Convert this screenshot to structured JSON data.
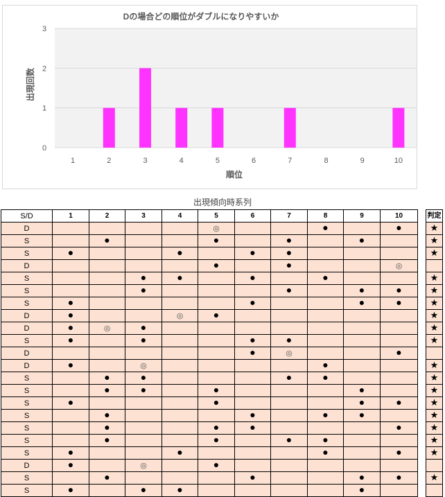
{
  "chart_data": {
    "type": "bar",
    "title": "Dの場合どの順位がダブルになりやすいか",
    "xlabel": "順位",
    "ylabel": "出現回数",
    "categories": [
      "1",
      "2",
      "3",
      "4",
      "5",
      "6",
      "7",
      "8",
      "9",
      "10"
    ],
    "values": [
      0,
      1,
      2,
      1,
      1,
      0,
      1,
      0,
      0,
      1
    ],
    "ylim": [
      0,
      3
    ],
    "yticks": [
      "0",
      "1",
      "2",
      "3"
    ],
    "grid": true,
    "bar_color": "#ff33ff"
  },
  "table": {
    "title": "出現傾向時系列",
    "header_sd": "S/D",
    "columns": [
      "1",
      "2",
      "3",
      "4",
      "5",
      "6",
      "7",
      "8",
      "9",
      "10"
    ],
    "judge_header": "判定",
    "dot_symbol": "●",
    "double_symbol": "◎",
    "rows": [
      {
        "sd": "D",
        "marks": [
          "",
          "",
          "",
          "",
          "◎",
          "",
          "",
          "●",
          "",
          "●"
        ],
        "judge": "★"
      },
      {
        "sd": "S",
        "marks": [
          "",
          "●",
          "",
          "",
          "●",
          "",
          "●",
          "",
          "●",
          ""
        ],
        "judge": "★"
      },
      {
        "sd": "S",
        "marks": [
          "●",
          "",
          "",
          "●",
          "",
          "●",
          "●",
          "",
          "",
          ""
        ],
        "judge": "★"
      },
      {
        "sd": "D",
        "marks": [
          "",
          "",
          "",
          "",
          "●",
          "",
          "●",
          "",
          "",
          "◎"
        ],
        "judge": ""
      },
      {
        "sd": "S",
        "marks": [
          "",
          "",
          "●",
          "●",
          "",
          "●",
          "",
          "●",
          "",
          ""
        ],
        "judge": "★"
      },
      {
        "sd": "S",
        "marks": [
          "",
          "",
          "●",
          "",
          "",
          "",
          "●",
          "",
          "●",
          "●"
        ],
        "judge": "★"
      },
      {
        "sd": "S",
        "marks": [
          "●",
          "",
          "",
          "",
          "",
          "●",
          "",
          "",
          "●",
          "●"
        ],
        "judge": "★"
      },
      {
        "sd": "D",
        "marks": [
          "●",
          "",
          "",
          "◎",
          "●",
          "",
          "",
          "",
          "",
          ""
        ],
        "judge": "★"
      },
      {
        "sd": "D",
        "marks": [
          "●",
          "◎",
          "●",
          "",
          "",
          "",
          "",
          "",
          "",
          ""
        ],
        "judge": "★"
      },
      {
        "sd": "S",
        "marks": [
          "●",
          "",
          "●",
          "",
          "",
          "●",
          "●",
          "",
          "",
          ""
        ],
        "judge": "★"
      },
      {
        "sd": "D",
        "marks": [
          "",
          "",
          "",
          "",
          "",
          "●",
          "◎",
          "",
          "",
          "●"
        ],
        "judge": ""
      },
      {
        "sd": "D",
        "marks": [
          "●",
          "",
          "◎",
          "",
          "",
          "",
          "",
          "●",
          "",
          ""
        ],
        "judge": "★"
      },
      {
        "sd": "S",
        "marks": [
          "",
          "●",
          "●",
          "",
          "",
          "",
          "●",
          "●",
          "",
          ""
        ],
        "judge": "★"
      },
      {
        "sd": "S",
        "marks": [
          "",
          "●",
          "●",
          "",
          "●",
          "",
          "",
          "",
          "●",
          ""
        ],
        "judge": "★"
      },
      {
        "sd": "S",
        "marks": [
          "●",
          "",
          "",
          "",
          "●",
          "",
          "",
          "",
          "●",
          "●"
        ],
        "judge": "★"
      },
      {
        "sd": "S",
        "marks": [
          "",
          "●",
          "",
          "",
          "",
          "●",
          "",
          "●",
          "●",
          ""
        ],
        "judge": "★"
      },
      {
        "sd": "S",
        "marks": [
          "",
          "●",
          "",
          "",
          "●",
          "●",
          "",
          "",
          "",
          "●"
        ],
        "judge": "★"
      },
      {
        "sd": "S",
        "marks": [
          "",
          "●",
          "",
          "",
          "●",
          "",
          "●",
          "●",
          "",
          ""
        ],
        "judge": "★"
      },
      {
        "sd": "S",
        "marks": [
          "●",
          "",
          "",
          "●",
          "",
          "",
          "",
          "●",
          "",
          "●"
        ],
        "judge": "★"
      },
      {
        "sd": "D",
        "marks": [
          "●",
          "",
          "◎",
          "",
          "●",
          "",
          "",
          "",
          "",
          ""
        ],
        "judge": ""
      },
      {
        "sd": "S",
        "marks": [
          "",
          "●",
          "",
          "",
          "",
          "●",
          "",
          "",
          "●",
          "●"
        ],
        "judge": "★"
      },
      {
        "sd": "S",
        "marks": [
          "●",
          "",
          "●",
          "●",
          "",
          "",
          "",
          "",
          "●",
          ""
        ],
        "judge": ""
      }
    ]
  }
}
